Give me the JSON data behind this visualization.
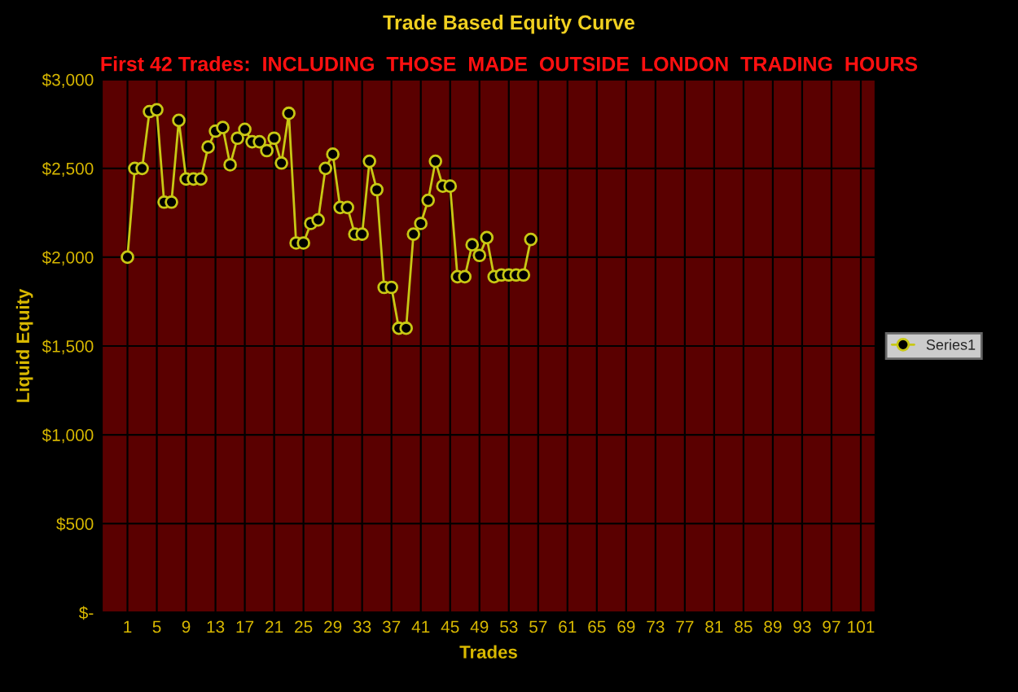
{
  "chart_data": {
    "type": "line",
    "title": "Trade Based Equity Curve",
    "subtitle": "First 42 Trades:  INCLUDING  THOSE  MADE  OUTSIDE  LONDON  TRADING  HOURS",
    "xlabel": "Trades",
    "ylabel": "Liquid Equity",
    "x": [
      1,
      2,
      3,
      4,
      5,
      6,
      7,
      8,
      9,
      10,
      11,
      12,
      13,
      14,
      15,
      16,
      17,
      18,
      19,
      20,
      21,
      22,
      23,
      24,
      25,
      26,
      27,
      28,
      29,
      30,
      31,
      32,
      33,
      34,
      35,
      36,
      37,
      38,
      39,
      40,
      41,
      42,
      43,
      44,
      45,
      46,
      47,
      48,
      49,
      50,
      51,
      52,
      53,
      54,
      55,
      56
    ],
    "series": [
      {
        "name": "Series1",
        "color": "#c8c814",
        "values": [
          2000,
          2500,
          2500,
          2820,
          2830,
          2310,
          2310,
          2770,
          2440,
          2440,
          2440,
          2620,
          2710,
          2730,
          2520,
          2670,
          2720,
          2650,
          2650,
          2600,
          2670,
          2530,
          2810,
          2080,
          2080,
          2190,
          2210,
          2500,
          2580,
          2280,
          2280,
          2130,
          2130,
          2540,
          2380,
          1830,
          1830,
          1600,
          1600,
          2130,
          2190,
          2320,
          2540,
          2400,
          2400,
          1890,
          1890,
          2070,
          2010,
          2110,
          1890,
          1900,
          1900,
          1900,
          1900,
          2100
        ]
      }
    ],
    "xlim": [
      -2.5,
      103
    ],
    "xticks": [
      1,
      5,
      9,
      13,
      17,
      21,
      25,
      29,
      33,
      37,
      41,
      45,
      49,
      53,
      57,
      61,
      65,
      69,
      73,
      77,
      81,
      85,
      89,
      93,
      97,
      101
    ],
    "ylim": [
      0,
      3000
    ],
    "yticks": [
      {
        "value": 0,
        "label": "$-"
      },
      {
        "value": 500,
        "label": "$500"
      },
      {
        "value": 1000,
        "label": "$1,000"
      },
      {
        "value": 1500,
        "label": "$1,500"
      },
      {
        "value": 2000,
        "label": "$2,000"
      },
      {
        "value": 2500,
        "label": "$2,500"
      },
      {
        "value": 3000,
        "label": "$3,000"
      }
    ],
    "grid": true,
    "legend": "right",
    "marker": "circle",
    "line_style": "solid"
  }
}
